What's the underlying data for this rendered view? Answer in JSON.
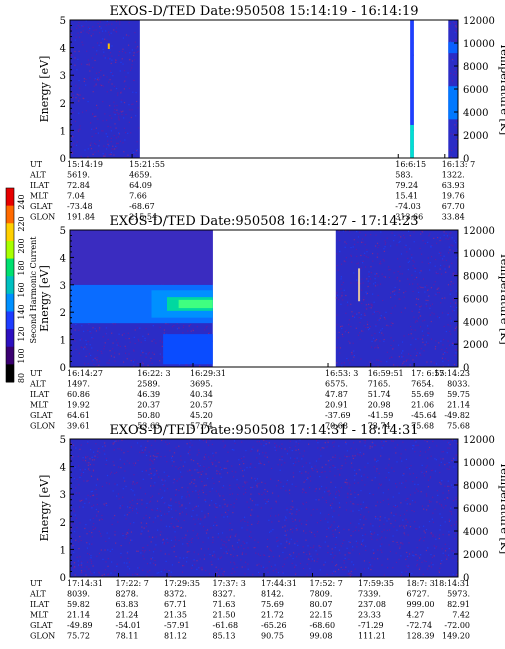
{
  "colorbar": {
    "label": "Second Harmonic Current",
    "ticks": [
      "240",
      "220",
      "200",
      "180",
      "160",
      "140",
      "120",
      "100",
      "80"
    ],
    "colors": [
      "#e60000",
      "#ff6a00",
      "#ffd000",
      "#a8ff00",
      "#00e070",
      "#00c0c0",
      "#0090ff",
      "#1e3cff",
      "#2d10c0",
      "#3a0070",
      "#000000"
    ]
  },
  "chart_data": [
    {
      "type": "heatmap",
      "title": "EXOS-D/TED   Date:950508   15:14:19 - 16:14:19",
      "ylabel": "Energy [eV]",
      "y2label": "Temperature [K]",
      "ylim": [
        0,
        5
      ],
      "y2lim": [
        0,
        12000
      ],
      "yticks": [
        "0",
        "1",
        "2",
        "3",
        "4",
        "5"
      ],
      "y2ticks": [
        "0",
        "2000",
        "4000",
        "6000",
        "8000",
        "10000",
        "12000"
      ],
      "background_color": "#2b2cc6",
      "data_spans": [
        [
          0.0,
          0.18
        ],
        [
          0.877,
          0.886
        ],
        [
          0.975,
          1.0
        ]
      ],
      "marks": [
        {
          "kind": "vline",
          "x": 0.1,
          "y0": 3.95,
          "y1": 4.15,
          "color": "#ffc000"
        },
        {
          "kind": "band",
          "x0": 0.877,
          "x1": 0.886,
          "y0": 0.0,
          "y1": 1.2,
          "color": "#00e0d0"
        },
        {
          "kind": "band",
          "x0": 0.877,
          "x1": 0.886,
          "y0": 1.2,
          "y1": 5.0,
          "color": "#1e40ff"
        },
        {
          "kind": "band",
          "x0": 0.975,
          "x1": 1.0,
          "y0": 1.4,
          "y1": 2.6,
          "color": "#0078ff"
        },
        {
          "kind": "band",
          "x0": 0.975,
          "x1": 1.0,
          "y0": 3.8,
          "y1": 4.2,
          "color": "#0a60ff"
        }
      ],
      "rows": [
        {
          "label": "UT",
          "cells": [
            {
              "x": 0.0,
              "v": "15:14:19"
            },
            {
              "x": 0.16,
              "v": "15:21:55"
            },
            {
              "x": 0.846,
              "v": "16:6:15"
            },
            {
              "x": 0.966,
              "v": "16:13: 7"
            }
          ]
        },
        {
          "label": "ALT",
          "cells": [
            {
              "x": 0.0,
              "v": "5619."
            },
            {
              "x": 0.16,
              "v": "4659."
            },
            {
              "x": 0.846,
              "v": "583."
            },
            {
              "x": 0.966,
              "v": "1322."
            }
          ]
        },
        {
          "label": "ILAT",
          "cells": [
            {
              "x": 0.0,
              "v": "72.84"
            },
            {
              "x": 0.16,
              "v": "64.09"
            },
            {
              "x": 0.846,
              "v": "79.24"
            },
            {
              "x": 0.966,
              "v": "63.93"
            }
          ]
        },
        {
          "label": "MLT",
          "cells": [
            {
              "x": 0.0,
              "v": "7.04"
            },
            {
              "x": 0.16,
              "v": "7.66"
            },
            {
              "x": 0.846,
              "v": "15.41"
            },
            {
              "x": 0.966,
              "v": "19.76"
            }
          ]
        },
        {
          "label": "GLAT",
          "cells": [
            {
              "x": 0.0,
              "v": "-73.48"
            },
            {
              "x": 0.16,
              "v": "-68.67"
            },
            {
              "x": 0.846,
              "v": "-74.03"
            },
            {
              "x": 0.966,
              "v": "67.70"
            }
          ]
        },
        {
          "label": "GLON",
          "cells": [
            {
              "x": 0.0,
              "v": "191.84"
            },
            {
              "x": 0.16,
              "v": "215.54"
            },
            {
              "x": 0.846,
              "v": "313.66"
            },
            {
              "x": 0.966,
              "v": "33.84"
            }
          ]
        }
      ]
    },
    {
      "type": "heatmap",
      "title": "EXOS-D/TED   Date:950508   16:14:27 - 17:14:23",
      "ylabel": "Energy [eV]",
      "y2label": "Temperature [K]",
      "ylim": [
        0,
        5
      ],
      "y2lim": [
        0,
        12000
      ],
      "yticks": [
        "0",
        "1",
        "2",
        "3",
        "4",
        "5"
      ],
      "y2ticks": [
        "0",
        "2000",
        "4000",
        "6000",
        "8000",
        "10000",
        "12000"
      ],
      "background_color": "#2b2cc6",
      "data_spans": [
        [
          0.0,
          0.368
        ],
        [
          0.685,
          1.0
        ]
      ],
      "marks": [
        {
          "kind": "band",
          "x0": 0.0,
          "x1": 0.368,
          "y0": 1.6,
          "y1": 3.0,
          "color": "#0a6cff"
        },
        {
          "kind": "band",
          "x0": 0.21,
          "x1": 0.368,
          "y0": 1.8,
          "y1": 2.8,
          "color": "#0090ff"
        },
        {
          "kind": "band",
          "x0": 0.25,
          "x1": 0.368,
          "y0": 2.05,
          "y1": 2.55,
          "color": "#00d8a0"
        },
        {
          "kind": "band",
          "x0": 0.28,
          "x1": 0.368,
          "y0": 2.15,
          "y1": 2.45,
          "color": "#40ff80"
        },
        {
          "kind": "band",
          "x0": 0.24,
          "x1": 0.368,
          "y0": 0.1,
          "y1": 1.2,
          "color": "#0a4cff"
        },
        {
          "kind": "band",
          "x0": 0.0,
          "x1": 0.368,
          "y0": 3.0,
          "y1": 5.0,
          "color": "#3a2cc0"
        },
        {
          "kind": "vline",
          "x": 0.745,
          "y0": 2.4,
          "y1": 3.6,
          "color": "#e0c0a0"
        }
      ],
      "rows": [
        {
          "label": "UT",
          "cells": [
            {
              "x": 0.0,
              "v": "16:14:27"
            },
            {
              "x": 0.181,
              "v": "16:22: 3"
            },
            {
              "x": 0.317,
              "v": "16:29:31"
            },
            {
              "x": 0.665,
              "v": "16:53: 3"
            },
            {
              "x": 0.775,
              "v": "16:59:51"
            },
            {
              "x": 0.887,
              "v": "17: 6:55"
            },
            {
              "x": 1.0,
              "v": "17:14:23"
            }
          ]
        },
        {
          "label": "ALT",
          "cells": [
            {
              "x": 0.0,
              "v": "1497."
            },
            {
              "x": 0.181,
              "v": "2589."
            },
            {
              "x": 0.317,
              "v": "3695."
            },
            {
              "x": 0.665,
              "v": "6575."
            },
            {
              "x": 0.775,
              "v": "7165."
            },
            {
              "x": 0.887,
              "v": "7654."
            },
            {
              "x": 1.0,
              "v": "8033."
            }
          ]
        },
        {
          "label": "ILAT",
          "cells": [
            {
              "x": 0.0,
              "v": "60.86"
            },
            {
              "x": 0.181,
              "v": "46.39"
            },
            {
              "x": 0.317,
              "v": "40.34"
            },
            {
              "x": 0.665,
              "v": "47.87"
            },
            {
              "x": 0.775,
              "v": "51.74"
            },
            {
              "x": 0.887,
              "v": "55.69"
            },
            {
              "x": 1.0,
              "v": "59.75"
            }
          ]
        },
        {
          "label": "MLT",
          "cells": [
            {
              "x": 0.0,
              "v": "19.92"
            },
            {
              "x": 0.181,
              "v": "20.37"
            },
            {
              "x": 0.317,
              "v": "20.57"
            },
            {
              "x": 0.665,
              "v": "20.91"
            },
            {
              "x": 0.775,
              "v": "20.98"
            },
            {
              "x": 0.887,
              "v": "21.06"
            },
            {
              "x": 1.0,
              "v": "21.14"
            }
          ]
        },
        {
          "label": "GLAT",
          "cells": [
            {
              "x": 0.0,
              "v": "64.61"
            },
            {
              "x": 0.181,
              "v": "50.80"
            },
            {
              "x": 0.317,
              "v": "45.20"
            },
            {
              "x": 0.665,
              "v": "-37.69"
            },
            {
              "x": 0.775,
              "v": "-41.59"
            },
            {
              "x": 0.887,
              "v": "-45.64"
            },
            {
              "x": 1.0,
              "v": "-49.82"
            }
          ]
        },
        {
          "label": "GLON",
          "cells": [
            {
              "x": 0.0,
              "v": "39.61"
            },
            {
              "x": 0.181,
              "v": "53.63"
            },
            {
              "x": 0.317,
              "v": "57.74"
            },
            {
              "x": 0.665,
              "v": "70.68"
            },
            {
              "x": 0.775,
              "v": "73.74"
            },
            {
              "x": 0.887,
              "v": "75.68"
            },
            {
              "x": 1.0,
              "v": "75.68"
            }
          ]
        }
      ]
    },
    {
      "type": "heatmap",
      "title": "EXOS-D/TED   Date:950508   17:14:31 - 18:14:31",
      "ylabel": "Energy [eV]",
      "y2label": "Temperature [K]",
      "ylim": [
        0,
        5
      ],
      "y2lim": [
        0,
        12000
      ],
      "yticks": [
        "0",
        "1",
        "2",
        "3",
        "4",
        "5"
      ],
      "y2ticks": [
        "0",
        "2000",
        "4000",
        "6000",
        "8000",
        "10000",
        "12000"
      ],
      "background_color": "#2b2cc6",
      "data_spans": [
        [
          0.0,
          1.0
        ]
      ],
      "marks": [],
      "rows": [
        {
          "label": "UT",
          "cells": [
            {
              "x": 0.0,
              "v": "17:14:31"
            },
            {
              "x": 0.125,
              "v": "17:22: 7"
            },
            {
              "x": 0.25,
              "v": "17:29:35"
            },
            {
              "x": 0.375,
              "v": "17:37: 3"
            },
            {
              "x": 0.5,
              "v": "17:44:31"
            },
            {
              "x": 0.625,
              "v": "17:52: 7"
            },
            {
              "x": 0.75,
              "v": "17:59:35"
            },
            {
              "x": 0.875,
              "v": "18:7: 3"
            },
            {
              "x": 1.0,
              "v": "18:14:31"
            }
          ]
        },
        {
          "label": "ALT",
          "cells": [
            {
              "x": 0.0,
              "v": "8039."
            },
            {
              "x": 0.125,
              "v": "8278."
            },
            {
              "x": 0.25,
              "v": "8372."
            },
            {
              "x": 0.375,
              "v": "8327."
            },
            {
              "x": 0.5,
              "v": "8142."
            },
            {
              "x": 0.625,
              "v": "7809."
            },
            {
              "x": 0.75,
              "v": "7339."
            },
            {
              "x": 0.875,
              "v": "6727."
            },
            {
              "x": 1.0,
              "v": "5973."
            }
          ]
        },
        {
          "label": "ILAT",
          "cells": [
            {
              "x": 0.0,
              "v": "59.82"
            },
            {
              "x": 0.125,
              "v": "63.83"
            },
            {
              "x": 0.25,
              "v": "67.71"
            },
            {
              "x": 0.375,
              "v": "71.63"
            },
            {
              "x": 0.5,
              "v": "75.69"
            },
            {
              "x": 0.625,
              "v": "80.07"
            },
            {
              "x": 0.75,
              "v": "237.08"
            },
            {
              "x": 0.875,
              "v": "999.00"
            },
            {
              "x": 1.0,
              "v": "82.91"
            }
          ]
        },
        {
          "label": "MLT",
          "cells": [
            {
              "x": 0.0,
              "v": "21.14"
            },
            {
              "x": 0.125,
              "v": "21.24"
            },
            {
              "x": 0.25,
              "v": "21.35"
            },
            {
              "x": 0.375,
              "v": "21.50"
            },
            {
              "x": 0.5,
              "v": "21.72"
            },
            {
              "x": 0.625,
              "v": "22.15"
            },
            {
              "x": 0.75,
              "v": "23.33"
            },
            {
              "x": 0.875,
              "v": "4.27"
            },
            {
              "x": 1.0,
              "v": "7.42"
            }
          ]
        },
        {
          "label": "GLAT",
          "cells": [
            {
              "x": 0.0,
              "v": "-49.89"
            },
            {
              "x": 0.125,
              "v": "-54.01"
            },
            {
              "x": 0.25,
              "v": "-57.91"
            },
            {
              "x": 0.375,
              "v": "-61.68"
            },
            {
              "x": 0.5,
              "v": "-65.26"
            },
            {
              "x": 0.625,
              "v": "-68.60"
            },
            {
              "x": 0.75,
              "v": "-71.29"
            },
            {
              "x": 0.875,
              "v": "-72.74"
            },
            {
              "x": 1.0,
              "v": "-72.00"
            }
          ]
        },
        {
          "label": "GLON",
          "cells": [
            {
              "x": 0.0,
              "v": "75.72"
            },
            {
              "x": 0.125,
              "v": "78.11"
            },
            {
              "x": 0.25,
              "v": "81.12"
            },
            {
              "x": 0.375,
              "v": "85.13"
            },
            {
              "x": 0.5,
              "v": "90.75"
            },
            {
              "x": 0.625,
              "v": "99.08"
            },
            {
              "x": 0.75,
              "v": "111.21"
            },
            {
              "x": 0.875,
              "v": "128.39"
            },
            {
              "x": 1.0,
              "v": "149.20"
            }
          ]
        }
      ]
    }
  ]
}
